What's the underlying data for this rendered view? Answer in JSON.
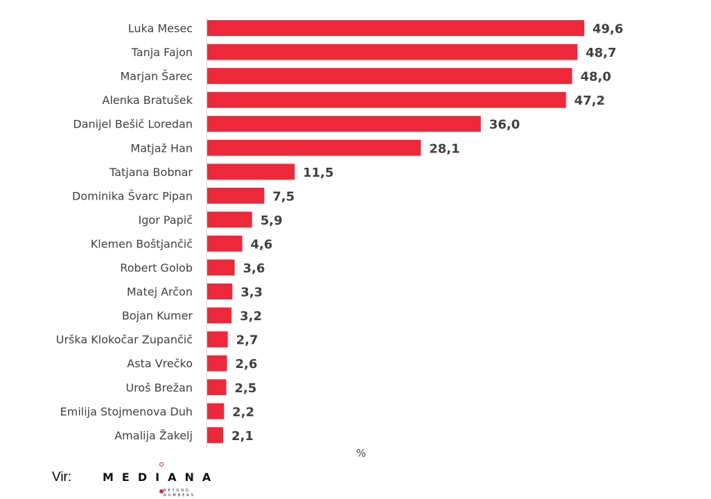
{
  "chart_data": {
    "type": "bar",
    "orientation": "horizontal",
    "categories": [
      "Luka Mesec",
      "Tanja Fajon",
      "Marjan Šarec",
      "Alenka Bratušek",
      "Danijel Bešič Loredan",
      "Matjaž Han",
      "Tatjana Bobnar",
      "Dominika Švarc Pipan",
      "Igor Papič",
      "Klemen Boštjančič",
      "Robert Golob",
      "Matej Arčon",
      "Bojan Kumer",
      "Urška Klokočar Zupančič",
      "Asta Vrečko",
      "Uroš Brežan",
      "Emilija Stojmenova Duh",
      "Amalija Žakelj"
    ],
    "values": [
      49.6,
      48.7,
      48.0,
      47.2,
      36.0,
      28.1,
      11.5,
      7.5,
      5.9,
      4.6,
      3.6,
      3.3,
      3.2,
      2.7,
      2.6,
      2.5,
      2.2,
      2.1
    ],
    "value_labels": [
      "49,6",
      "48,7",
      "48,0",
      "47,2",
      "36,0",
      "28,1",
      "11,5",
      "7,5",
      "5,9",
      "4,6",
      "3,6",
      "3,3",
      "3,2",
      "2,7",
      "2,6",
      "2,5",
      "2,2",
      "2,1"
    ],
    "xlabel": "%",
    "ylabel": "",
    "xlim": [
      0,
      50
    ],
    "bar_color": "#ed2939",
    "grid": false
  },
  "source": {
    "label": "Vir:",
    "logo_text": "MEDIANA",
    "logo_subtext_line1": "BEYOND",
    "logo_subtext_line2": "NUMBERS",
    "logo_dot_color": "#e8203a"
  }
}
